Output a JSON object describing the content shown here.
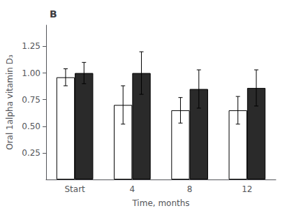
{
  "chart_data": {
    "type": "bar",
    "title": "B",
    "categories": [
      "Start",
      "4",
      "8",
      "12"
    ],
    "series": [
      {
        "color": "#ffffff",
        "values": [
          0.96,
          0.7,
          0.65,
          0.65
        ],
        "errors": [
          0.08,
          0.18,
          0.12,
          0.13
        ]
      },
      {
        "color": "#2a2a2a",
        "values": [
          1.0,
          1.0,
          0.85,
          0.86
        ],
        "errors": [
          0.1,
          0.2,
          0.18,
          0.17
        ]
      }
    ],
    "xlabel": "Time, months",
    "ylabel": "Oral 1alpha vitamin D₃",
    "ylim": [
      0,
      1.45
    ],
    "yticks": [
      0.25,
      {
        "value": 0.5,
        "label": "0.50"
      },
      0.75,
      {
        "value": 1.0,
        "label": "1.00"
      },
      1.25
    ],
    "grid": false
  }
}
